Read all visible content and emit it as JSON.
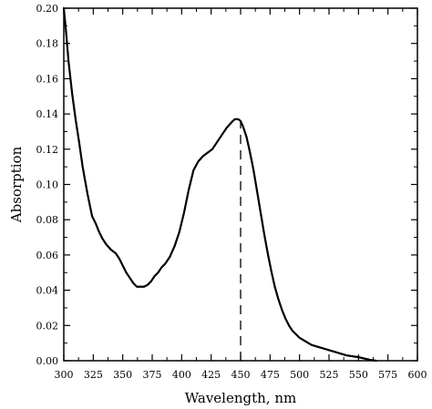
{
  "chart_data": {
    "type": "line",
    "title": "",
    "xlabel": "Wavelength, nm",
    "ylabel": "Absorption",
    "xlim": [
      300,
      600
    ],
    "ylim": [
      0,
      0.2
    ],
    "grid": false,
    "legend": "none",
    "x_ticks": [
      300,
      325,
      350,
      375,
      400,
      425,
      450,
      475,
      500,
      525,
      550,
      575,
      600
    ],
    "x_tick_labels": [
      "300",
      "325",
      "350",
      "375",
      "400",
      "425",
      "450",
      "475",
      "500",
      "525",
      "550",
      "575",
      "600"
    ],
    "y_ticks": [
      0,
      0.02,
      0.04,
      0.06,
      0.08,
      0.1,
      0.12,
      0.14,
      0.16,
      0.18,
      0.2
    ],
    "y_tick_labels": [
      "0.00",
      "0.02",
      "0.04",
      "0.06",
      "0.08",
      "0.10",
      "0.12",
      "0.14",
      "0.16",
      "0.18",
      "0.20"
    ],
    "series": [
      {
        "color": "#000000",
        "x": [
          300,
          302,
          304,
          307,
          310,
          313,
          316,
          320,
          324,
          327,
          330,
          333,
          336,
          340,
          344,
          347,
          350,
          353,
          356,
          359,
          362,
          365,
          368,
          371,
          374,
          377,
          380,
          383,
          386,
          390,
          394,
          398,
          402,
          406,
          410,
          414,
          418,
          422,
          426,
          430,
          434,
          438,
          442,
          445,
          448,
          450,
          452,
          455,
          458,
          461,
          464,
          467,
          470,
          473,
          476,
          479,
          482,
          485,
          488,
          491,
          494,
          497,
          500,
          505,
          510,
          515,
          520,
          530,
          540,
          550,
          560,
          565
        ],
        "y": [
          0.2,
          0.186,
          0.17,
          0.152,
          0.137,
          0.124,
          0.11,
          0.095,
          0.082,
          0.078,
          0.073,
          0.069,
          0.066,
          0.063,
          0.061,
          0.058,
          0.054,
          0.05,
          0.047,
          0.044,
          0.042,
          0.042,
          0.042,
          0.043,
          0.045,
          0.048,
          0.05,
          0.053,
          0.055,
          0.059,
          0.065,
          0.073,
          0.084,
          0.097,
          0.108,
          0.113,
          0.116,
          0.118,
          0.12,
          0.124,
          0.128,
          0.132,
          0.135,
          0.137,
          0.137,
          0.136,
          0.133,
          0.127,
          0.118,
          0.108,
          0.096,
          0.084,
          0.072,
          0.061,
          0.051,
          0.042,
          0.035,
          0.029,
          0.024,
          0.02,
          0.017,
          0.015,
          0.013,
          0.011,
          0.009,
          0.008,
          0.007,
          0.005,
          0.003,
          0.002,
          0.0005,
          0.0
        ]
      }
    ],
    "annotations": [
      {
        "type": "dashed-vertical-line",
        "x": 450,
        "y_from": 0,
        "y_to": 0.136
      }
    ]
  }
}
